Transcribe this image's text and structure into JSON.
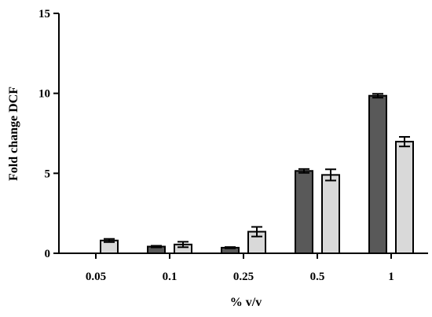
{
  "chart_data": {
    "type": "bar",
    "xlabel": "% v/v",
    "ylabel": "Fold change DCF",
    "ylim": [
      0,
      15
    ],
    "yticks": [
      0,
      5,
      10,
      15
    ],
    "grid": false,
    "categories": [
      "0.05",
      "0.1",
      "0.25",
      "0.5",
      "1"
    ],
    "series": [
      {
        "color": "#595959",
        "values": [
          null,
          0.42,
          0.35,
          5.15,
          9.85
        ],
        "errors": [
          null,
          0.05,
          0.04,
          0.12,
          0.12
        ]
      },
      {
        "color": "#d9d9d9",
        "values": [
          0.8,
          0.55,
          1.35,
          4.9,
          6.98
        ],
        "errors": [
          0.1,
          0.17,
          0.3,
          0.35,
          0.3
        ]
      }
    ]
  }
}
